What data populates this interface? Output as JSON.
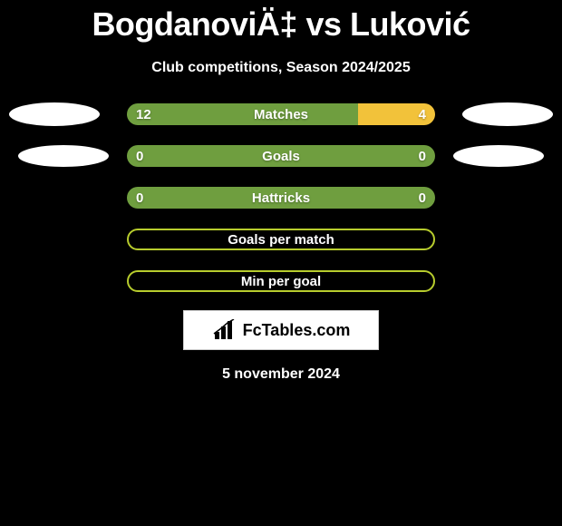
{
  "background_color": "#000000",
  "text_color": "#ffffff",
  "title": "BogdanoviÄ‡ vs Luković",
  "title_fontsize": 36,
  "subtitle": "Club competitions, Season 2024/2025",
  "subtitle_fontsize": 16,
  "date": "5 november 2024",
  "date_fontsize": 16,
  "colors": {
    "left": "#6f9e3f",
    "right": "#f2c23a",
    "pill_border": "#b7cc2d",
    "ellipse_fill": "#ffffff",
    "logo_bg": "#ffffff",
    "logo_border": "#cfcfcf"
  },
  "rows": [
    {
      "label": "Matches",
      "left_value": "12",
      "right_value": "4",
      "left_pct": 75,
      "right_pct": 25,
      "show_left_ellipse": true,
      "show_right_ellipse": true,
      "ellipse_size": "lg"
    },
    {
      "label": "Goals",
      "left_value": "0",
      "right_value": "0",
      "left_pct": 100,
      "right_pct": 0,
      "show_left_ellipse": true,
      "show_right_ellipse": true,
      "ellipse_size": "sm"
    },
    {
      "label": "Hattricks",
      "left_value": "0",
      "right_value": "0",
      "left_pct": 100,
      "right_pct": 0,
      "show_left_ellipse": false,
      "show_right_ellipse": false
    }
  ],
  "pill_rows": [
    {
      "label": "Goals per match"
    },
    {
      "label": "Min per goal"
    }
  ],
  "logo": {
    "text": "FcTables.com",
    "icon_name": "bars-icon"
  }
}
